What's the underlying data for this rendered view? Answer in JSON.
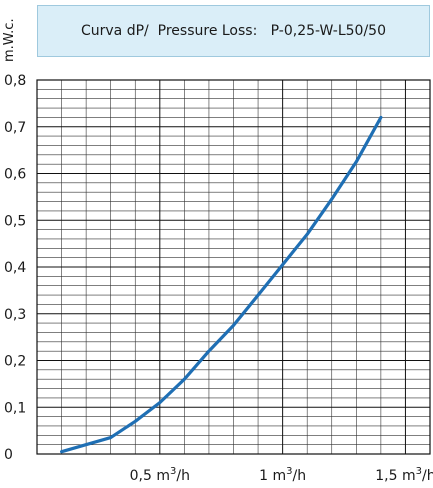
{
  "header": {
    "ylabel": "m.W.c.",
    "title_prefix": "Curva dP/  Pressure Loss:",
    "model": "P-0,25-W-L50/50"
  },
  "chart_data": {
    "type": "line",
    "title": "Curva dP/  Pressure Loss:   P-0,25-W-L50/50",
    "xlabel": "",
    "ylabel": "m.W.c.",
    "xlim": [
      0,
      1.6
    ],
    "ylim": [
      0,
      0.8
    ],
    "yticks": [
      {
        "value": 0,
        "label": "0"
      },
      {
        "value": 0.1,
        "label": "0,1"
      },
      {
        "value": 0.2,
        "label": "0,2"
      },
      {
        "value": 0.3,
        "label": "0,3"
      },
      {
        "value": 0.4,
        "label": "0,4"
      },
      {
        "value": 0.5,
        "label": "0,5"
      },
      {
        "value": 0.6,
        "label": "0,6"
      },
      {
        "value": 0.7,
        "label": "0,7"
      },
      {
        "value": 0.8,
        "label": "0,8"
      }
    ],
    "xticks": [
      {
        "value": 0.5,
        "num": "0,5",
        "unit": "m",
        "sup": "3",
        "rest": "/h"
      },
      {
        "value": 1.0,
        "num": "1",
        "unit": "m",
        "sup": "3",
        "rest": "/h"
      },
      {
        "value": 1.5,
        "num": "1,5",
        "unit": "m",
        "sup": "3",
        "rest": "/h"
      }
    ],
    "grid": true,
    "line_color": "#1f6fb4",
    "series": [
      {
        "x": [
          0.1,
          0.3,
          0.4,
          0.5,
          0.6,
          0.7,
          0.8,
          0.9,
          1.0,
          1.1,
          1.2,
          1.3,
          1.4
        ],
        "y": [
          0.005,
          0.035,
          0.07,
          0.11,
          0.16,
          0.22,
          0.275,
          0.34,
          0.405,
          0.47,
          0.545,
          0.625,
          0.72
        ]
      }
    ]
  }
}
